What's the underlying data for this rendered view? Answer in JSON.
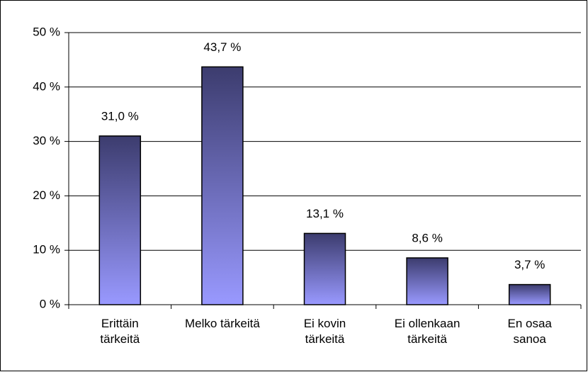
{
  "chart_data": {
    "type": "bar",
    "categories": [
      "Erittäin\ntärkeitä",
      "Melko tärkeitä",
      "Ei kovin\ntärkeitä",
      "Ei ollenkaan\ntärkeitä",
      "En osaa\nsanoa"
    ],
    "values": [
      31.0,
      43.7,
      13.1,
      8.6,
      3.7
    ],
    "value_labels": [
      "31,0 %",
      "43,7 %",
      "13,1 %",
      "8,6 %",
      "3,7 %"
    ],
    "gradient": [
      "#3c3c6e",
      "#9999ff"
    ],
    "ylim": [
      0,
      50
    ],
    "yticks": [
      {
        "value": 0,
        "label": "0 %"
      },
      {
        "value": 10,
        "label": "10 %"
      },
      {
        "value": 20,
        "label": "20 %"
      },
      {
        "value": 30,
        "label": "30 %"
      },
      {
        "value": 40,
        "label": "40 %"
      },
      {
        "value": 50,
        "label": "50 %"
      }
    ],
    "grid": true
  }
}
